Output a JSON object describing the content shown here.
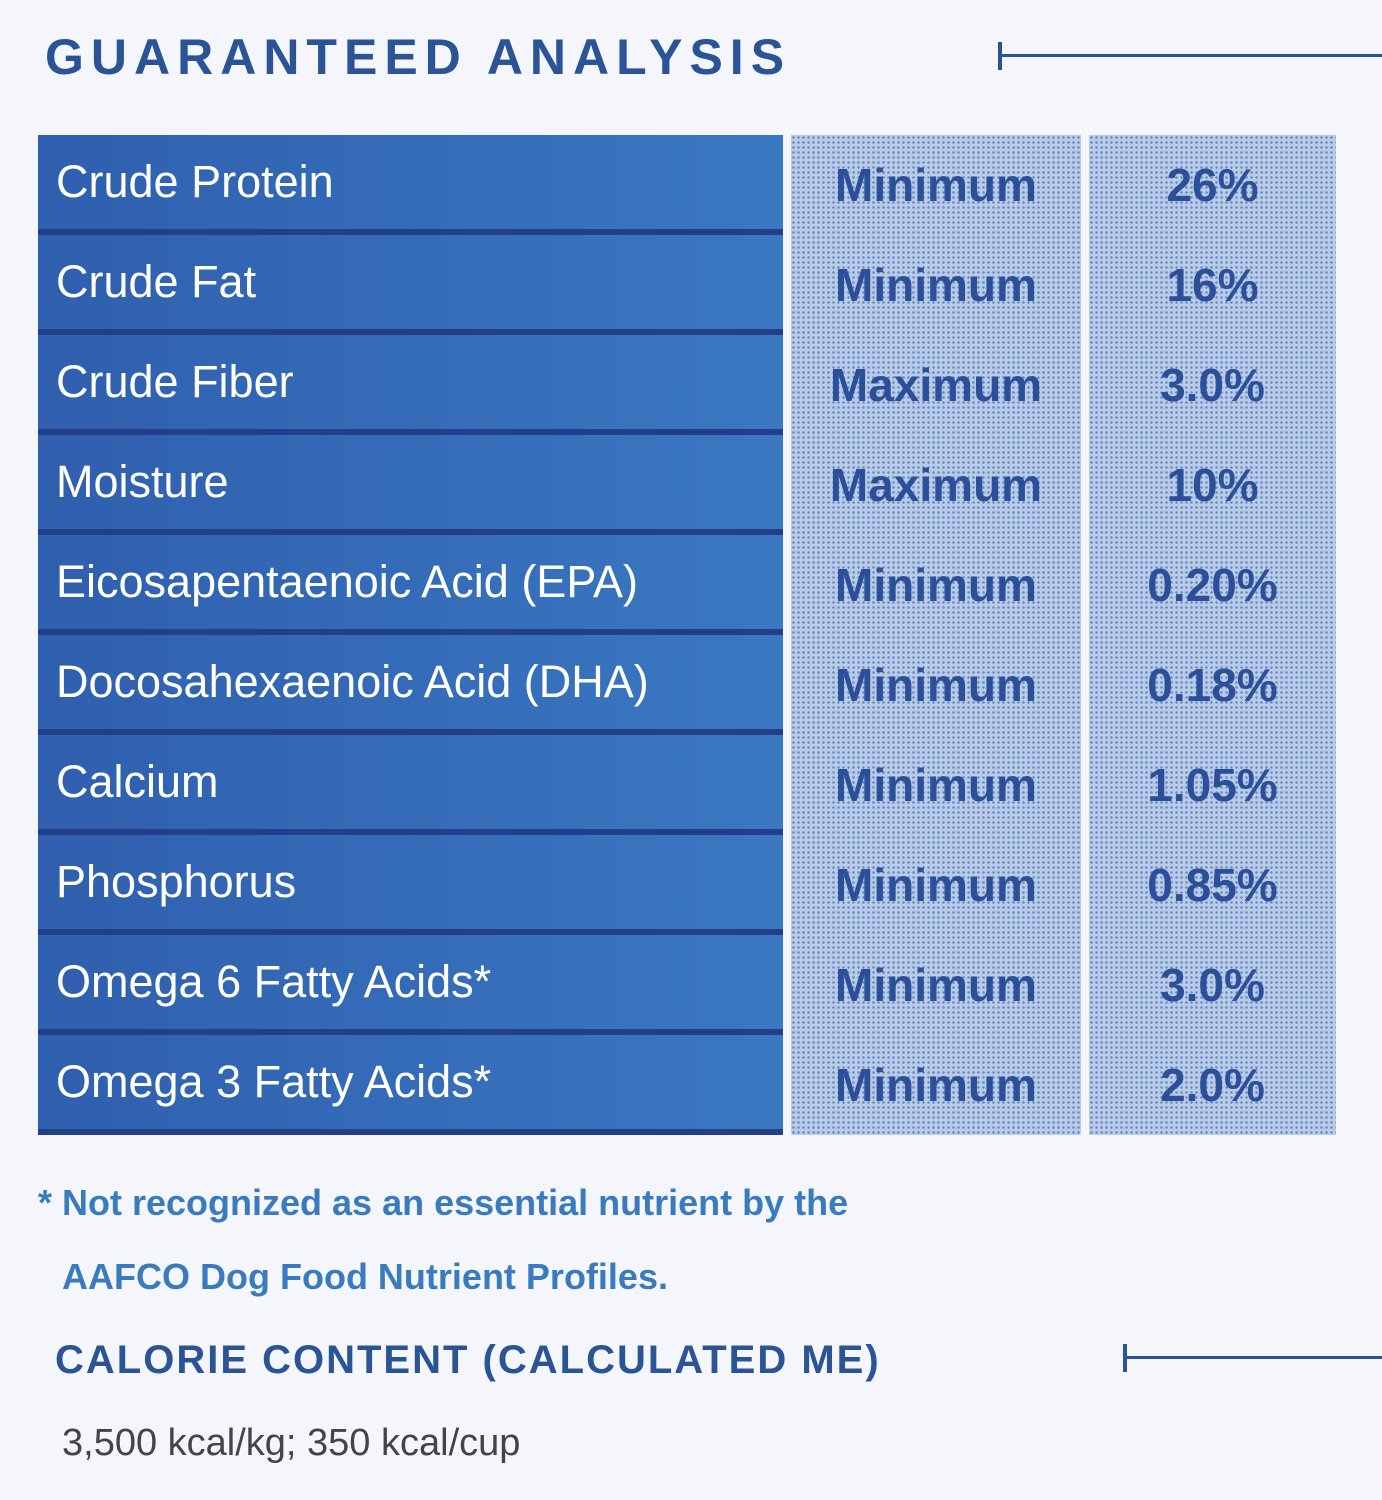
{
  "header": {
    "title": "GUARANTEED ANALYSIS"
  },
  "table": {
    "rows": [
      [
        "Crude Protein",
        "Minimum",
        "26%"
      ],
      [
        "Crude Fat",
        "Minimum",
        "16%"
      ],
      [
        "Crude Fiber",
        "Maximum",
        "3.0%"
      ],
      [
        "Moisture",
        "Maximum",
        "10%"
      ],
      [
        "Eicosapentaenoic Acid (EPA)",
        "Minimum",
        "0.20%"
      ],
      [
        "Docosahexaenoic Acid (DHA)",
        "Minimum",
        "0.18%"
      ],
      [
        "Calcium",
        "Minimum",
        "1.05%"
      ],
      [
        "Phosphorus",
        "Minimum",
        "0.85%"
      ],
      [
        "Omega 6 Fatty Acids*",
        "Minimum",
        "3.0%"
      ],
      [
        "Omega 3 Fatty Acids*",
        "Minimum",
        "2.0%"
      ]
    ]
  },
  "footnote": {
    "lines": [
      "* Not recognized as an essential nutrient by the",
      "AAFCO Dog Food Nutrient Profiles."
    ]
  },
  "calorie": {
    "title": "CALORIE CONTENT (CALCULATED ME)",
    "text": "3,500 kcal/kg; 350 kcal/cup"
  }
}
